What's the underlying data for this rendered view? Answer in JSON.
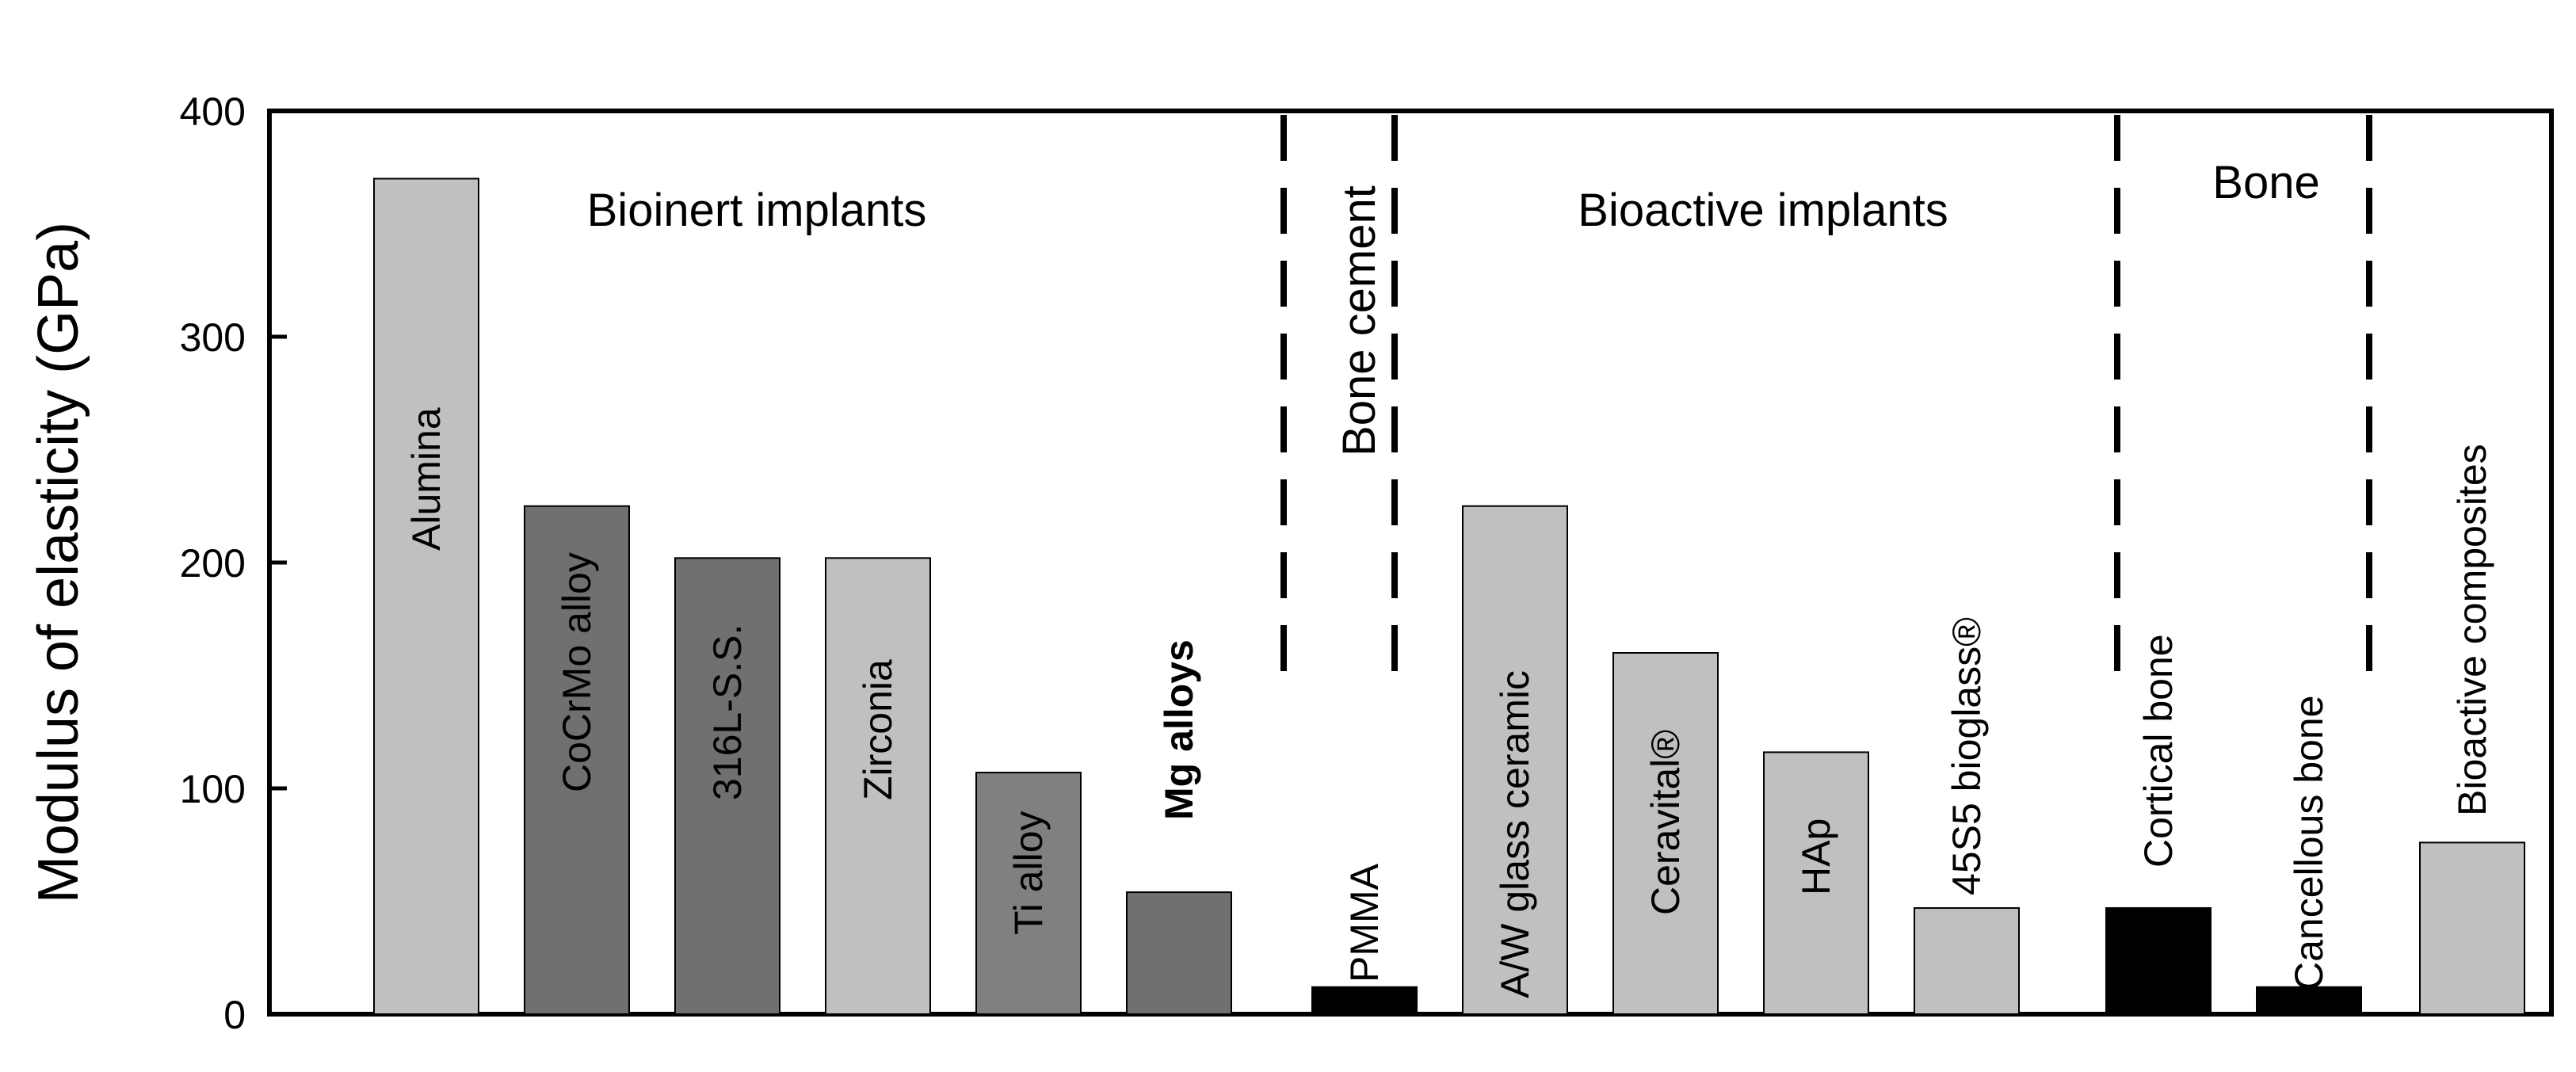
{
  "chart_data": {
    "type": "bar",
    "ylabel": "Modulus of elasticity (GPa)",
    "ylim": [
      0,
      400
    ],
    "yticks": [
      "0",
      "100",
      "200",
      "300",
      "400"
    ],
    "categories": [
      "Alumina",
      "CoCrMo alloy",
      "316L-S.S.",
      "Zirconia",
      "Ti alloy",
      "Mg alloys",
      "PMMA",
      "A/W glass ceramic",
      "Ceravital®",
      "HAp",
      "45S5 bioglass®",
      "Cortical bone",
      "Cancellous bone",
      "Bioactive composites"
    ],
    "values": [
      370,
      225,
      202,
      202,
      107,
      54,
      12,
      225,
      160,
      116,
      47,
      47,
      12,
      76
    ],
    "bar_colors": [
      "#c0c0c0",
      "#707070",
      "#707070",
      "#c0c0c0",
      "#808080",
      "#707070",
      "#000000",
      "#c0c0c0",
      "#c0c0c0",
      "#c0c0c0",
      "#c0c0c0",
      "#000000",
      "#000000",
      "#c0c0c0"
    ],
    "bold_labels": [
      "Mg alloys"
    ],
    "groups": [
      "Bioinert implants",
      "Bone cement",
      "Bioactive implants",
      "Bone"
    ],
    "grid": false,
    "legend": "none"
  }
}
